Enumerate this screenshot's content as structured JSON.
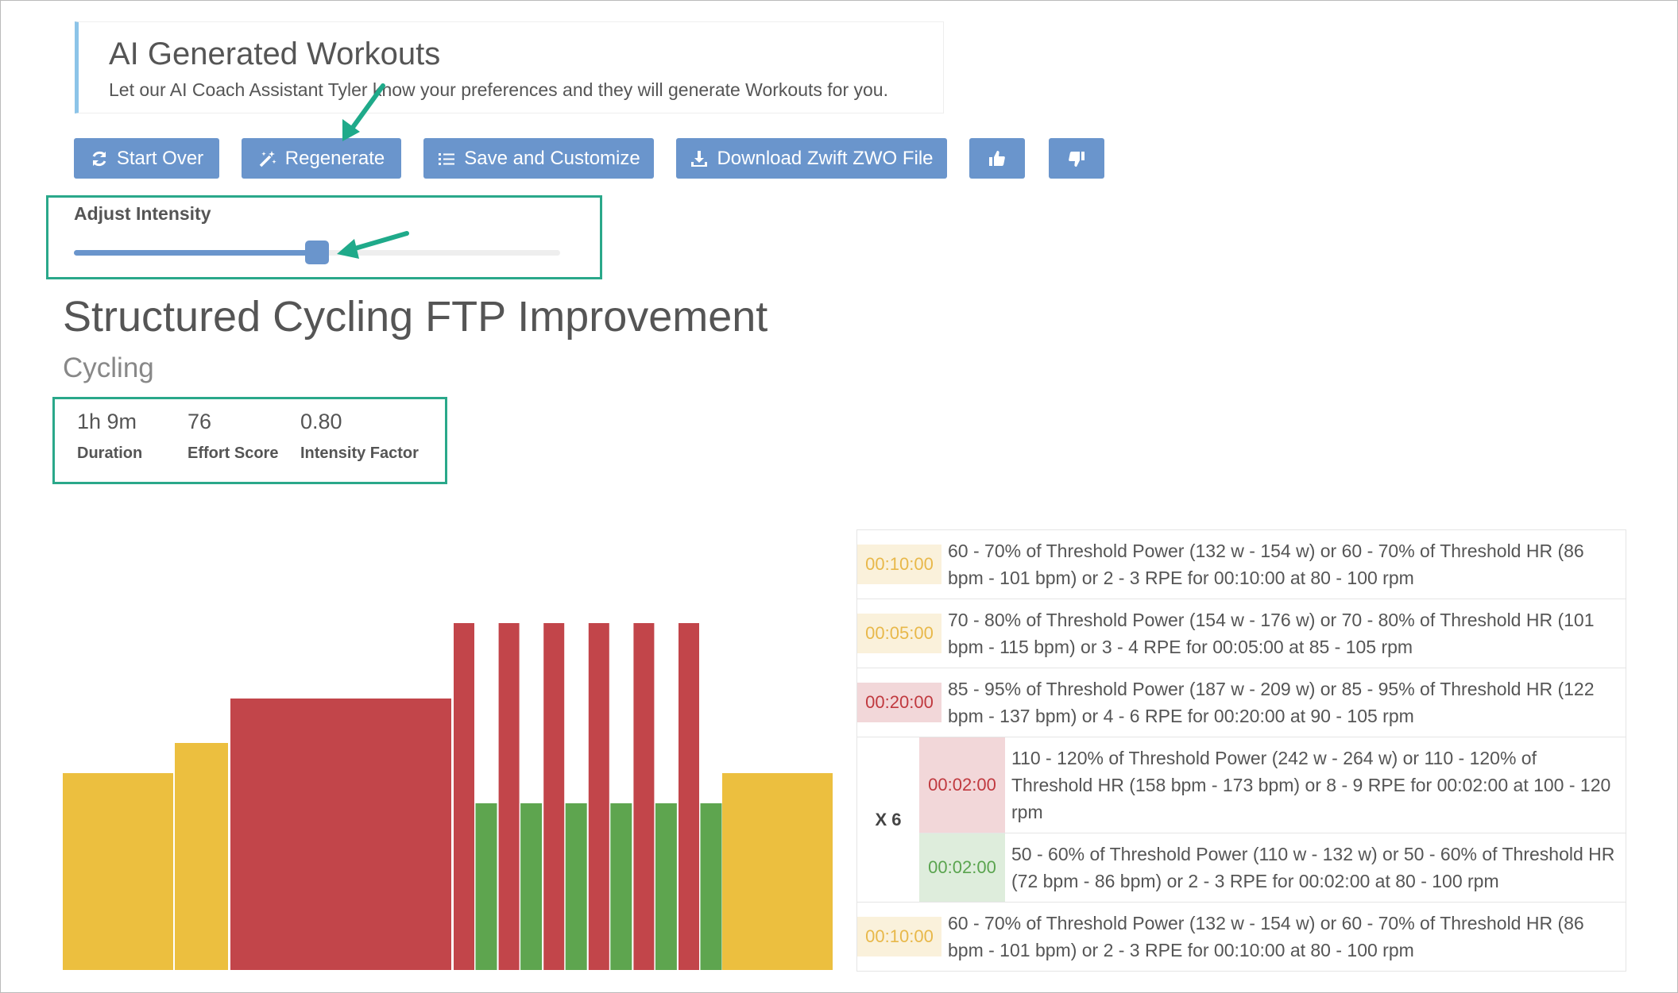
{
  "header": {
    "title": "AI Generated Workouts",
    "subtitle": "Let our AI Coach Assistant Tyler know your preferences and they will generate Workouts for you."
  },
  "buttons": [
    "Start Over",
    "Regenerate",
    "Save and Customize",
    "Download Zwift ZWO File"
  ],
  "intensity": {
    "label": "Adjust Intensity"
  },
  "workout": {
    "title": "Structured Cycling FTP Improvement",
    "sport": "Cycling",
    "stats": [
      {
        "value": "1h 9m",
        "label": "Duration"
      },
      {
        "value": "76",
        "label": "Effort Score"
      },
      {
        "value": "0.80",
        "label": "Intensity Factor"
      }
    ]
  },
  "steps": [
    {
      "time": "00:10:00",
      "color": "#e8b84a",
      "text": "60 - 70% of Threshold Power (132 w - 154 w) or 60 - 70% of Threshold HR (86 bpm - 101 bpm) or 2 - 3 RPE for 00:10:00 at 80 - 100 rpm"
    },
    {
      "time": "00:05:00",
      "color": "#e8b84a",
      "text": "70 - 80% of Threshold Power (154 w - 176 w) or 70 - 80% of Threshold HR (101 bpm - 115 bpm) or 3 - 4 RPE for 00:05:00 at 85 - 105 rpm"
    },
    {
      "time": "00:20:00",
      "color": "#c0393f",
      "text": "85 - 95% of Threshold Power (187 w - 209 w) or 85 - 95% of Threshold HR (122 bpm - 137 bpm) or 4 - 6 RPE for 00:20:00 at 90 - 105 rpm"
    },
    {
      "repeat": "X 6",
      "steps": [
        {
          "time": "00:02:00",
          "color": "#c0393f",
          "text": "110 - 120% of Threshold Power (242 w - 264 w) or 110 - 120% of Threshold HR (158 bpm - 173 bpm) or 8 - 9 RPE for 00:02:00 at 100 - 120 rpm"
        },
        {
          "time": "00:02:00",
          "color": "#5aa44f",
          "text": "50 - 60% of Threshold Power (110 w - 132 w) or 50 - 60% of Threshold HR (72 bpm - 86 bpm) or 2 - 3 RPE for 00:02:00 at 80 - 100 rpm"
        }
      ]
    },
    {
      "time": "00:10:00",
      "color": "#e8b84a",
      "text": "60 - 70% of Threshold Power (132 w - 154 w) or 60 - 70% of Threshold HR (86 bpm - 101 bpm) or 2 - 3 RPE for 00:10:00 at 80 - 100 rpm"
    }
  ]
}
